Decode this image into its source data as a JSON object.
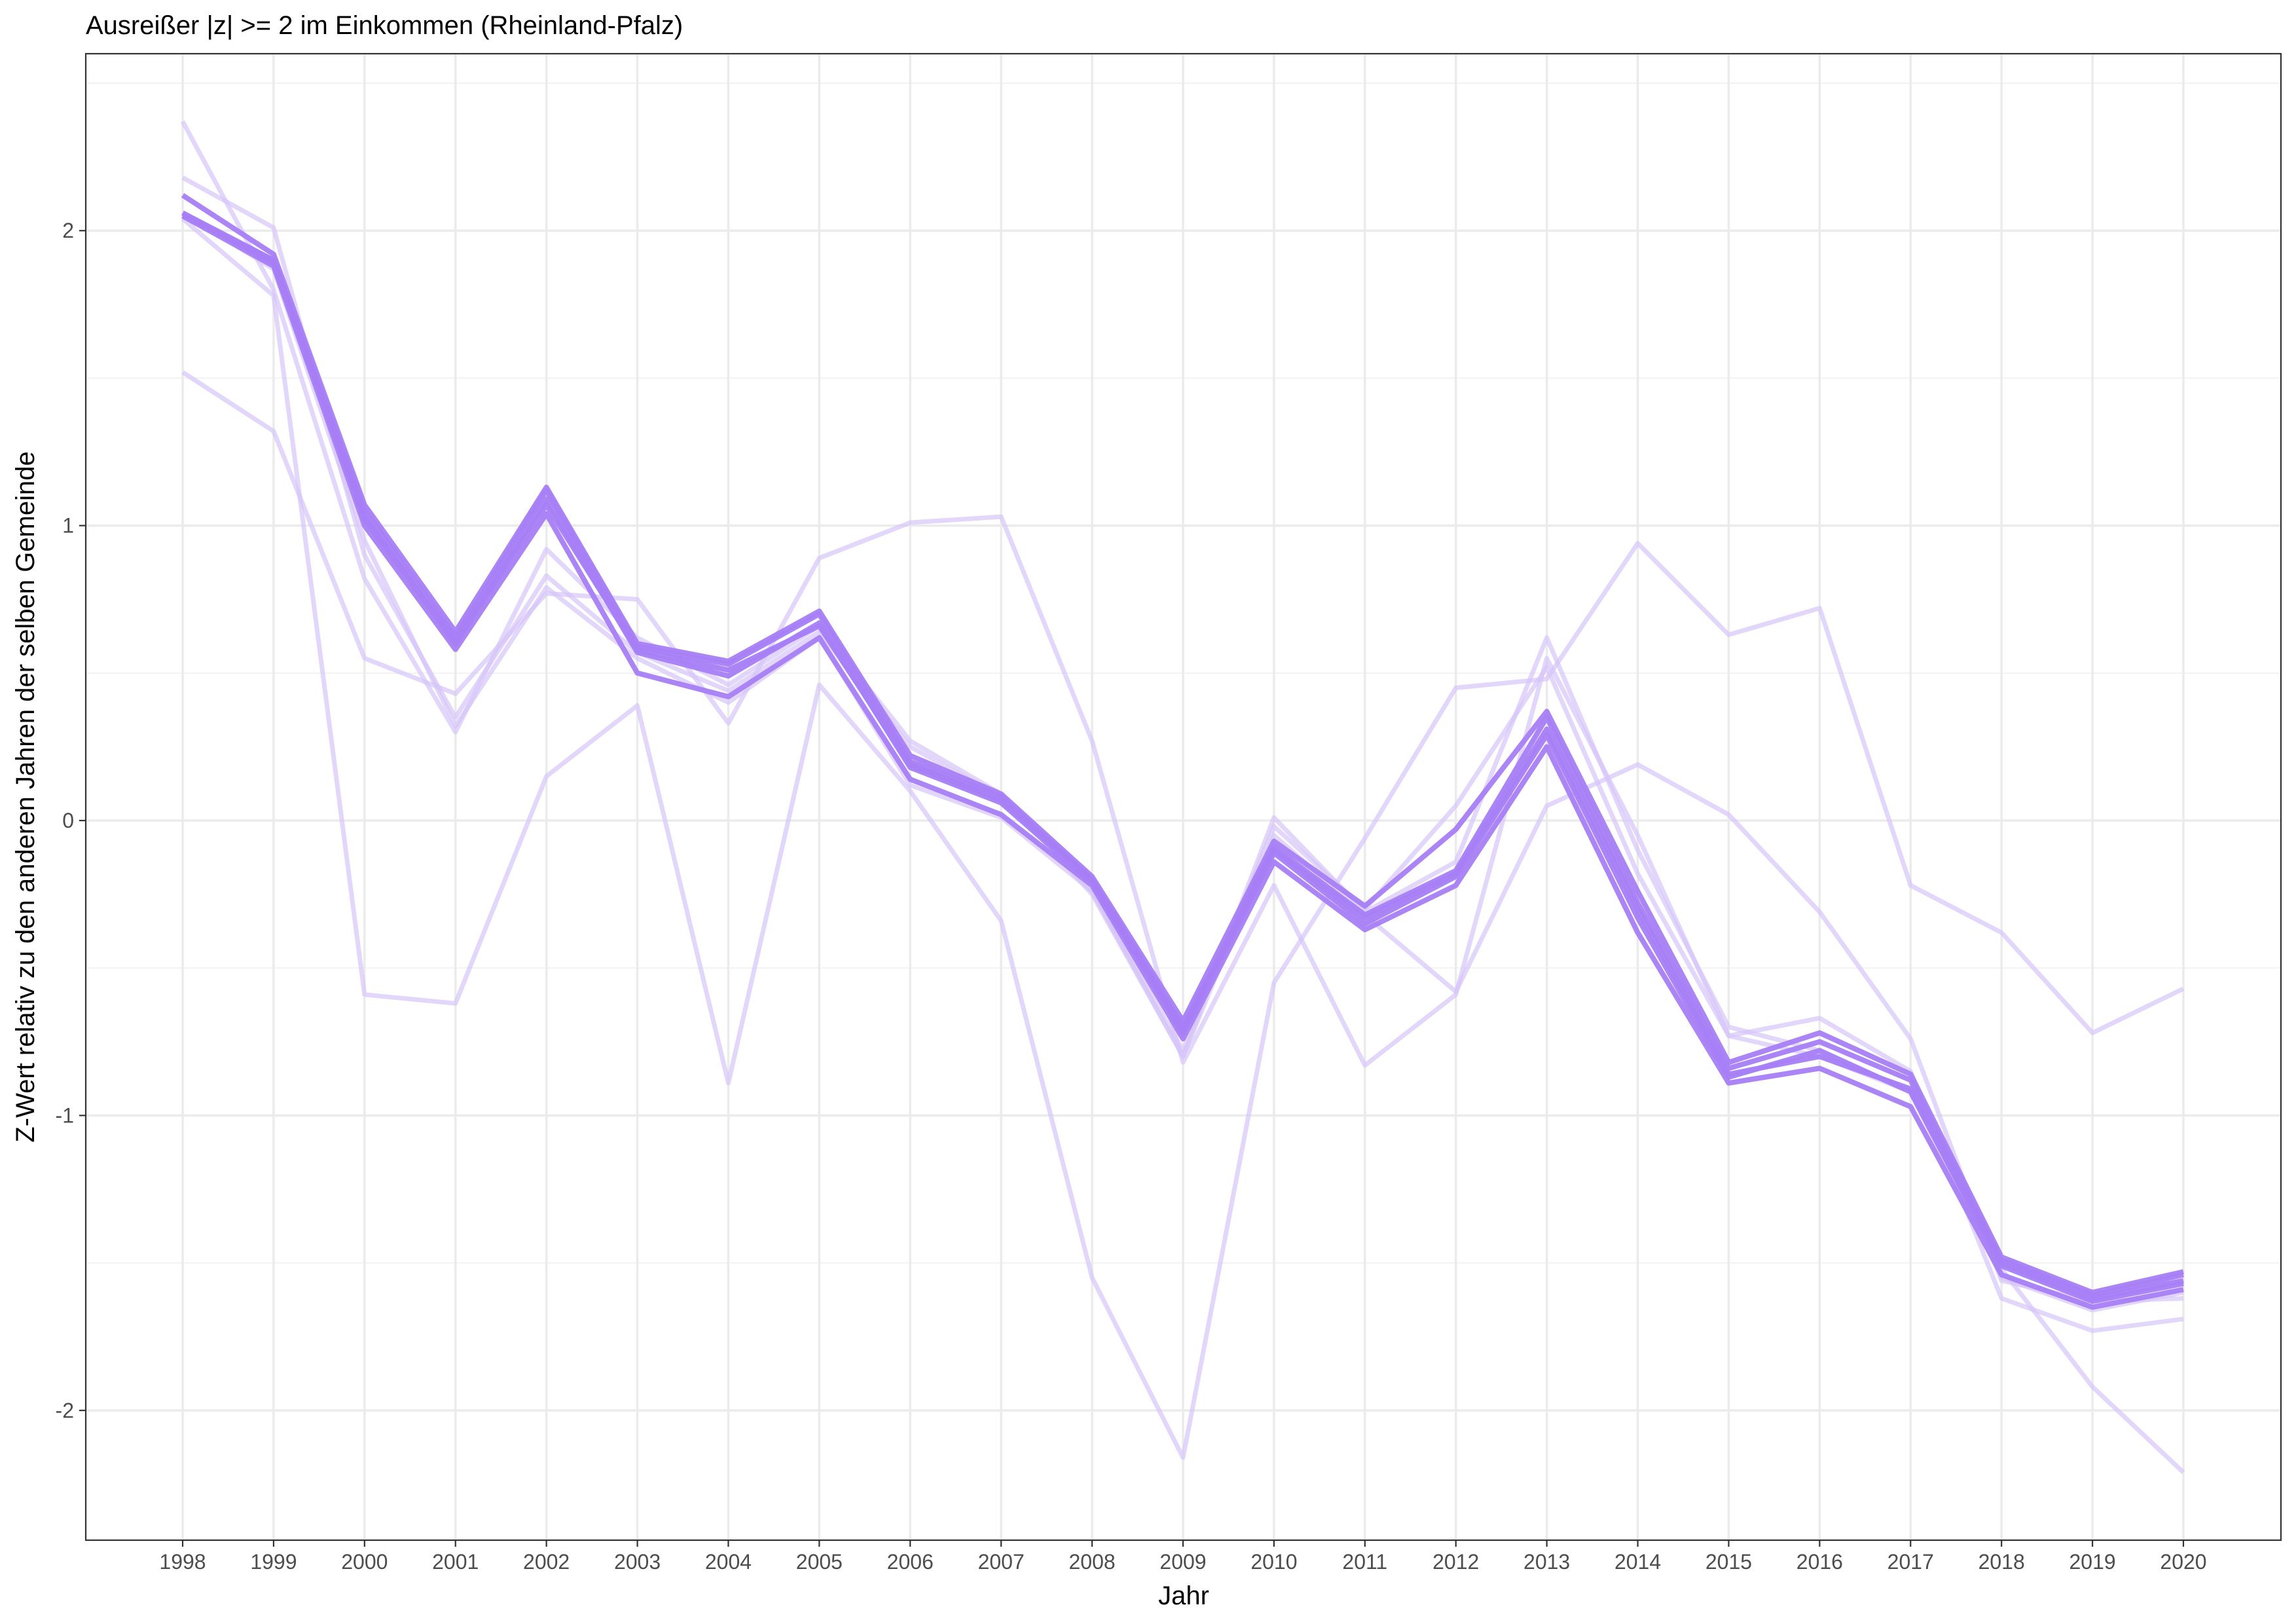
{
  "chart_data": {
    "type": "line",
    "title": "Ausreißer |z| >= 2 im Einkommen (Rheinland-Pfalz)",
    "xlabel": "Jahr",
    "ylabel": "Z-Wert relativ zu den anderen Jahren der selben Gemeinde",
    "x": [
      1998,
      1999,
      2000,
      2001,
      2002,
      2003,
      2004,
      2005,
      2006,
      2007,
      2008,
      2009,
      2010,
      2011,
      2012,
      2013,
      2014,
      2015,
      2016,
      2017,
      2018,
      2019,
      2020
    ],
    "x_tick_labels": [
      "1998",
      "1999",
      "2000",
      "2001",
      "2002",
      "2003",
      "2004",
      "2005",
      "2006",
      "2007",
      "2008",
      "2009",
      "2010",
      "2011",
      "2012",
      "2013",
      "2014",
      "2015",
      "2016",
      "2017",
      "2018",
      "2019",
      "2020"
    ],
    "y_ticks": [
      -2,
      -1,
      0,
      1,
      2
    ],
    "y_tick_labels": [
      "-2",
      "-1",
      "0",
      "1",
      "2"
    ],
    "ylim": [
      -2.44,
      2.6
    ],
    "grid": true,
    "legend": "none",
    "colors": {
      "strong": "#a77ef5",
      "faint": "#d5c4fa"
    },
    "series": [
      {
        "style": "strong",
        "values": [
          2.06,
          1.9,
          1.05,
          0.62,
          1.12,
          0.59,
          0.53,
          0.7,
          0.2,
          0.08,
          -0.2,
          -0.71,
          -0.09,
          -0.32,
          -0.17,
          0.35,
          -0.28,
          -0.84,
          -0.75,
          -0.88,
          -1.49,
          -1.61,
          -1.54
        ]
      },
      {
        "style": "strong",
        "values": [
          2.12,
          1.92,
          1.07,
          0.64,
          1.13,
          0.6,
          0.54,
          0.71,
          0.22,
          0.09,
          -0.19,
          -0.68,
          -0.07,
          -0.29,
          -0.03,
          0.37,
          -0.24,
          -0.82,
          -0.72,
          -0.86,
          -1.48,
          -1.6,
          -1.53
        ]
      },
      {
        "style": "strong",
        "values": [
          2.05,
          1.88,
          1.0,
          0.58,
          1.04,
          0.5,
          0.42,
          0.62,
          0.14,
          0.02,
          -0.22,
          -0.74,
          -0.14,
          -0.37,
          -0.22,
          0.25,
          -0.38,
          -0.89,
          -0.84,
          -0.97,
          -1.54,
          -1.65,
          -1.59
        ]
      },
      {
        "style": "strong",
        "values": [
          2.06,
          1.89,
          1.03,
          0.6,
          1.09,
          0.57,
          0.49,
          0.67,
          0.18,
          0.06,
          -0.21,
          -0.72,
          -0.11,
          -0.35,
          -0.19,
          0.29,
          -0.33,
          -0.87,
          -0.78,
          -0.92,
          -1.51,
          -1.63,
          -1.57
        ]
      },
      {
        "style": "strong",
        "values": [
          2.05,
          1.9,
          1.02,
          0.61,
          1.07,
          0.58,
          0.51,
          0.66,
          0.19,
          0.07,
          -0.2,
          -0.7,
          -0.1,
          -0.33,
          -0.18,
          0.31,
          -0.3,
          -0.86,
          -0.8,
          -0.91,
          -1.5,
          -1.62,
          -1.56
        ]
      },
      {
        "style": "faint",
        "values": [
          2.37,
          1.8,
          0.82,
          0.3,
          0.92,
          0.62,
          0.46,
          0.66,
          0.27,
          0.09,
          -0.25,
          -0.8,
          0.01,
          -0.31,
          -0.14,
          0.62,
          -0.1,
          -0.7,
          -0.78,
          -0.92,
          -1.55,
          -1.66,
          -1.6
        ]
      },
      {
        "style": "faint",
        "values": [
          2.18,
          2.01,
          0.9,
          0.35,
          0.83,
          0.57,
          0.44,
          0.64,
          0.25,
          0.08,
          -0.24,
          -0.78,
          -0.02,
          -0.3,
          0.05,
          0.52,
          -0.18,
          -0.73,
          -0.67,
          -0.85,
          -1.62,
          -1.73,
          -1.69
        ]
      },
      {
        "style": "faint",
        "values": [
          1.52,
          1.32,
          0.55,
          0.43,
          0.77,
          0.75,
          0.33,
          0.89,
          1.01,
          1.03,
          0.27,
          -0.82,
          -0.22,
          -0.83,
          -0.59,
          0.55,
          -0.05,
          -0.73,
          -0.8,
          -0.92,
          -1.52,
          -1.92,
          -2.21
        ]
      },
      {
        "style": "faint",
        "values": [
          2.04,
          1.78,
          -0.59,
          -0.62,
          0.15,
          0.39,
          -0.89,
          0.46,
          0.1,
          -0.34,
          -1.55,
          -2.16,
          -0.55,
          -0.06,
          0.45,
          0.48,
          0.94,
          0.63,
          0.72,
          -0.22,
          -0.38,
          -0.72,
          -0.57
        ]
      },
      {
        "style": "faint",
        "values": [
          2.06,
          1.87,
          0.95,
          0.32,
          0.79,
          0.55,
          0.4,
          0.62,
          0.12,
          0.01,
          -0.24,
          -0.8,
          -0.05,
          -0.32,
          -0.58,
          0.05,
          0.19,
          0.02,
          -0.31,
          -0.74,
          -1.56,
          -1.63,
          -1.62
        ]
      }
    ]
  }
}
